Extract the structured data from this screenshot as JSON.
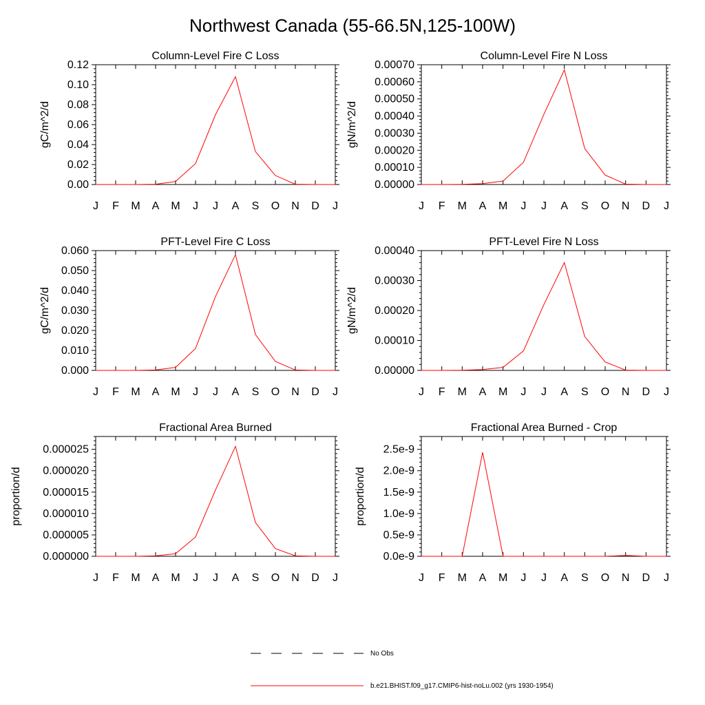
{
  "title": "Northwest Canada (55-66.5N,125-100W)",
  "months": [
    "J",
    "F",
    "M",
    "A",
    "M",
    "J",
    "J",
    "A",
    "S",
    "O",
    "N",
    "D",
    "J"
  ],
  "legend": {
    "obs_label": "No Obs",
    "model_label": "b.e21.BHIST.f09_g17.CMIP6-hist-noLu.002 (yrs 1930-1954)",
    "model_color": "#ff0000"
  },
  "chart_data": [
    {
      "type": "line",
      "title": "Column-Level Fire C Loss",
      "ylabel": "gC/m^2/d",
      "x": [
        "J",
        "F",
        "M",
        "A",
        "M",
        "J",
        "J",
        "A",
        "S",
        "O",
        "N",
        "D",
        "J"
      ],
      "ylim": [
        0,
        0.12
      ],
      "yticks": [
        "0.00",
        "0.02",
        "0.04",
        "0.06",
        "0.08",
        "0.10",
        "0.12"
      ],
      "series": [
        {
          "values": [
            0,
            0,
            0,
            0.0003,
            0.003,
            0.021,
            0.07,
            0.108,
            0.033,
            0.009,
            0.0003,
            0,
            0
          ]
        }
      ]
    },
    {
      "type": "line",
      "title": "Column-Level Fire N Loss",
      "ylabel": "gN/m^2/d",
      "x": [
        "J",
        "F",
        "M",
        "A",
        "M",
        "J",
        "J",
        "A",
        "S",
        "O",
        "N",
        "D",
        "J"
      ],
      "ylim": [
        0,
        0.0007
      ],
      "yticks": [
        "0.00000",
        "0.00010",
        "0.00020",
        "0.00030",
        "0.00040",
        "0.00050",
        "0.00060",
        "0.00070"
      ],
      "series": [
        {
          "values": [
            0,
            0,
            1e-06,
            5e-06,
            2e-05,
            0.00013,
            0.00041,
            0.00067,
            0.00021,
            5.5e-05,
            2e-06,
            0,
            0
          ]
        }
      ]
    },
    {
      "type": "line",
      "title": "PFT-Level Fire C Loss",
      "ylabel": "gC/m^2/d",
      "x": [
        "J",
        "F",
        "M",
        "A",
        "M",
        "J",
        "J",
        "A",
        "S",
        "O",
        "N",
        "D",
        "J"
      ],
      "ylim": [
        0,
        0.06
      ],
      "yticks": [
        "0.000",
        "0.010",
        "0.020",
        "0.030",
        "0.040",
        "0.050",
        "0.060"
      ],
      "series": [
        {
          "values": [
            0,
            0,
            0,
            0.0002,
            0.0015,
            0.011,
            0.037,
            0.058,
            0.018,
            0.0045,
            0.0002,
            0,
            0
          ]
        }
      ]
    },
    {
      "type": "line",
      "title": "PFT-Level Fire N Loss",
      "ylabel": "gN/m^2/d",
      "x": [
        "J",
        "F",
        "M",
        "A",
        "M",
        "J",
        "J",
        "A",
        "S",
        "O",
        "N",
        "D",
        "J"
      ],
      "ylim": [
        0,
        0.0004
      ],
      "yticks": [
        "0.00000",
        "0.00010",
        "0.00020",
        "0.00030",
        "0.00040"
      ],
      "series": [
        {
          "values": [
            0,
            0,
            5e-07,
            3e-06,
            1e-05,
            6.5e-05,
            0.00022,
            0.00036,
            0.000113,
            2.8e-05,
            1e-06,
            0,
            0
          ]
        }
      ]
    },
    {
      "type": "line",
      "title": "Fractional Area Burned",
      "ylabel": "proportion/d",
      "x": [
        "J",
        "F",
        "M",
        "A",
        "M",
        "J",
        "J",
        "A",
        "S",
        "O",
        "N",
        "D",
        "J"
      ],
      "ylim": [
        0,
        2.8e-05
      ],
      "yticks": [
        "0.000000",
        "0.000005",
        "0.000010",
        "0.000015",
        "0.000020",
        "0.000025"
      ],
      "series": [
        {
          "values": [
            0,
            0,
            0,
            1e-07,
            6e-07,
            4.5e-06,
            1.55e-05,
            2.57e-05,
            7.9e-06,
            1.8e-06,
            1e-07,
            0,
            0
          ]
        }
      ]
    },
    {
      "type": "line",
      "title": "Fractional Area Burned - Crop",
      "ylabel": "proportion/d",
      "x": [
        "J",
        "F",
        "M",
        "A",
        "M",
        "J",
        "J",
        "A",
        "S",
        "O",
        "N",
        "D",
        "J"
      ],
      "ylim": [
        0,
        2.8e-09
      ],
      "yticks": [
        "0.0e-9",
        "0.5e-9",
        "1.0e-9",
        "1.5e-9",
        "2.0e-9",
        "2.5e-9"
      ],
      "series": [
        {
          "values": [
            0,
            0,
            0,
            2.43e-09,
            0,
            0,
            0,
            0,
            0,
            0,
            2e-11,
            0,
            0
          ]
        }
      ]
    }
  ]
}
